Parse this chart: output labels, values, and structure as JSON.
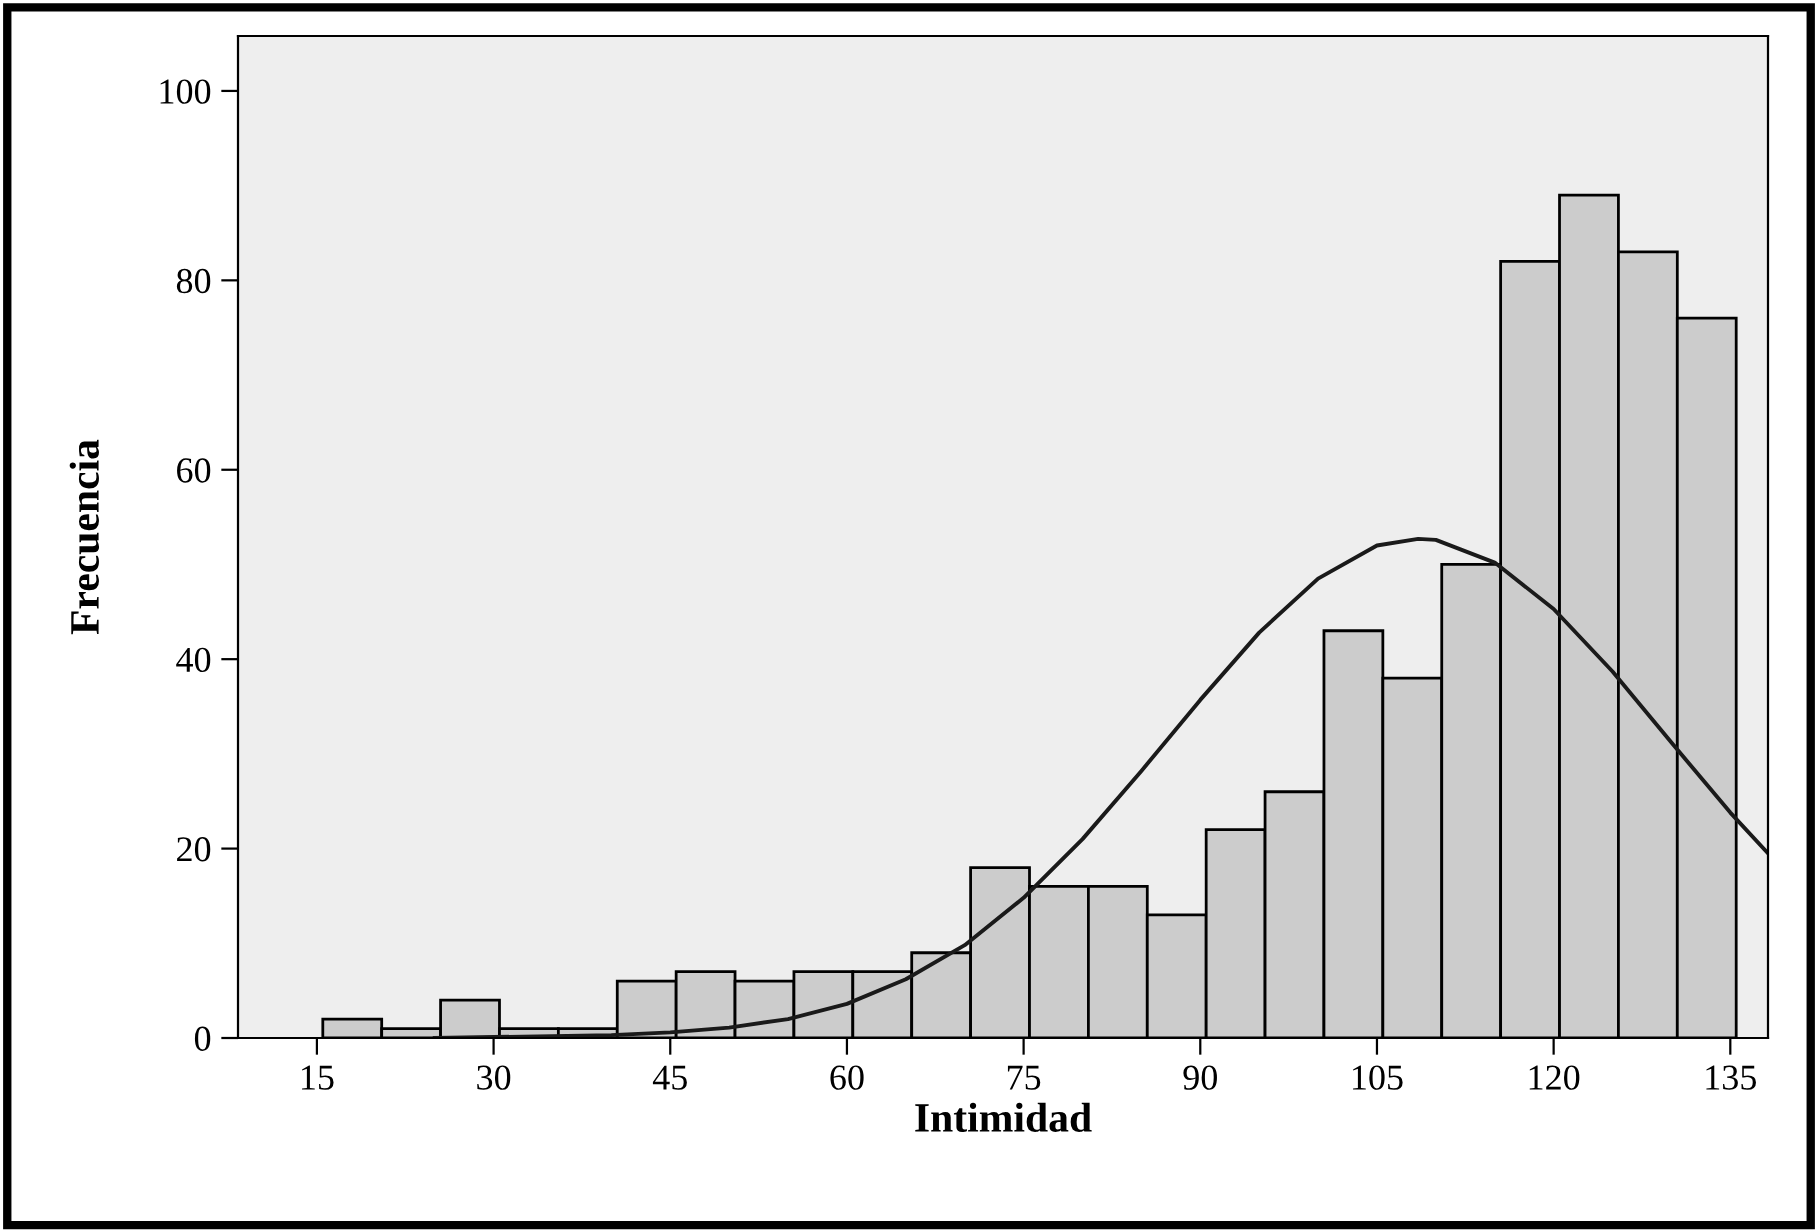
{
  "chart_data": {
    "type": "histogram",
    "xlabel": "Intimidad",
    "ylabel": "Frecuencia",
    "bins": [
      15.5,
      20.5,
      25.5,
      30.5,
      35.5,
      40.5,
      45.5,
      50.5,
      55.5,
      60.5,
      65.5,
      70.5,
      75.5,
      80.5,
      85.5,
      90.5,
      95.5,
      100.5,
      105.5,
      110.5,
      115.5,
      120.5,
      125.5,
      130.5,
      135.5
    ],
    "values": [
      2,
      1,
      4,
      1,
      1,
      6,
      7,
      6,
      7,
      7,
      9,
      18,
      16,
      16,
      13,
      22,
      26,
      43,
      38,
      50,
      82,
      89,
      83,
      76
    ],
    "color": "#cccccc",
    "series": [
      {
        "type": "line",
        "color": "#1a1a1a",
        "x": [
          25,
          30,
          40,
          45,
          50,
          55,
          60,
          65,
          70,
          75,
          80,
          85,
          90,
          95,
          100,
          105,
          108.5,
          110,
          115,
          120,
          125,
          130,
          135,
          138.2
        ],
        "values": [
          0,
          0.1,
          0.3,
          0.6,
          1.1,
          2.0,
          3.6,
          6.2,
          9.8,
          14.8,
          21,
          28.2,
          35.7,
          42.8,
          48.5,
          52,
          52.7,
          52.6,
          50.2,
          45.3,
          38.7,
          31.2,
          23.8,
          19.5
        ]
      }
    ],
    "xlim": [
      8.3,
      138.2
    ],
    "xticks": [
      15,
      30,
      45,
      60,
      75,
      90,
      105,
      120,
      135
    ],
    "ylim": [
      0,
      105.8
    ],
    "yticks": [
      0,
      20,
      40,
      60,
      80,
      100
    ],
    "grid": false
  }
}
